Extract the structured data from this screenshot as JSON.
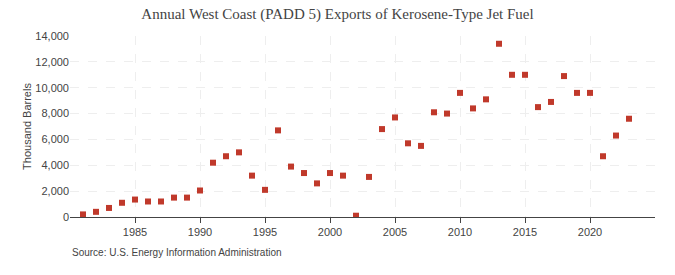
{
  "chart_data": {
    "type": "scatter",
    "title": "Annual West Coast (PADD 5) Exports of Kerosene-Type Jet Fuel",
    "ylabel": "Thousand Barrels",
    "annotations": [
      "Source: U.S. Energy Information Administration"
    ],
    "x": [
      1981,
      1982,
      1983,
      1984,
      1985,
      1986,
      1987,
      1988,
      1989,
      1990,
      1991,
      1992,
      1993,
      1994,
      1995,
      1996,
      1997,
      1998,
      1999,
      2000,
      2001,
      2002,
      2003,
      2004,
      2005,
      2006,
      2007,
      2008,
      2009,
      2010,
      2011,
      2012,
      2013,
      2014,
      2015,
      2016,
      2017,
      2018,
      2019,
      2020,
      2021,
      2022,
      2023
    ],
    "values": [
      200,
      400,
      700,
      1100,
      1350,
      1200,
      1200,
      1500,
      1500,
      2050,
      4200,
      4700,
      5000,
      3200,
      2100,
      6700,
      3900,
      3400,
      2600,
      3400,
      3200,
      100,
      3100,
      6800,
      7700,
      5700,
      5500,
      8100,
      8000,
      9600,
      8400,
      9100,
      13400,
      11000,
      11000,
      8500,
      8900,
      10900,
      9600,
      9600,
      4700,
      6300,
      7600
    ],
    "color": "#c0392b",
    "marker": "square",
    "xlim": [
      1980,
      2025
    ],
    "xticks": [
      1985,
      1990,
      1995,
      2000,
      2005,
      2010,
      2015,
      2020
    ],
    "ylim": [
      0,
      14000
    ],
    "yticks": [
      0,
      {
        "value": 2000,
        "label": "2,000"
      },
      {
        "value": 4000,
        "label": "4,000"
      },
      {
        "value": 6000,
        "label": "6,000"
      },
      {
        "value": 8000,
        "label": "8,000"
      },
      {
        "value": 10000,
        "label": "10,000"
      },
      {
        "value": 12000,
        "label": "12,000"
      },
      {
        "value": 14000,
        "label": "14,000"
      }
    ],
    "grid": true
  }
}
